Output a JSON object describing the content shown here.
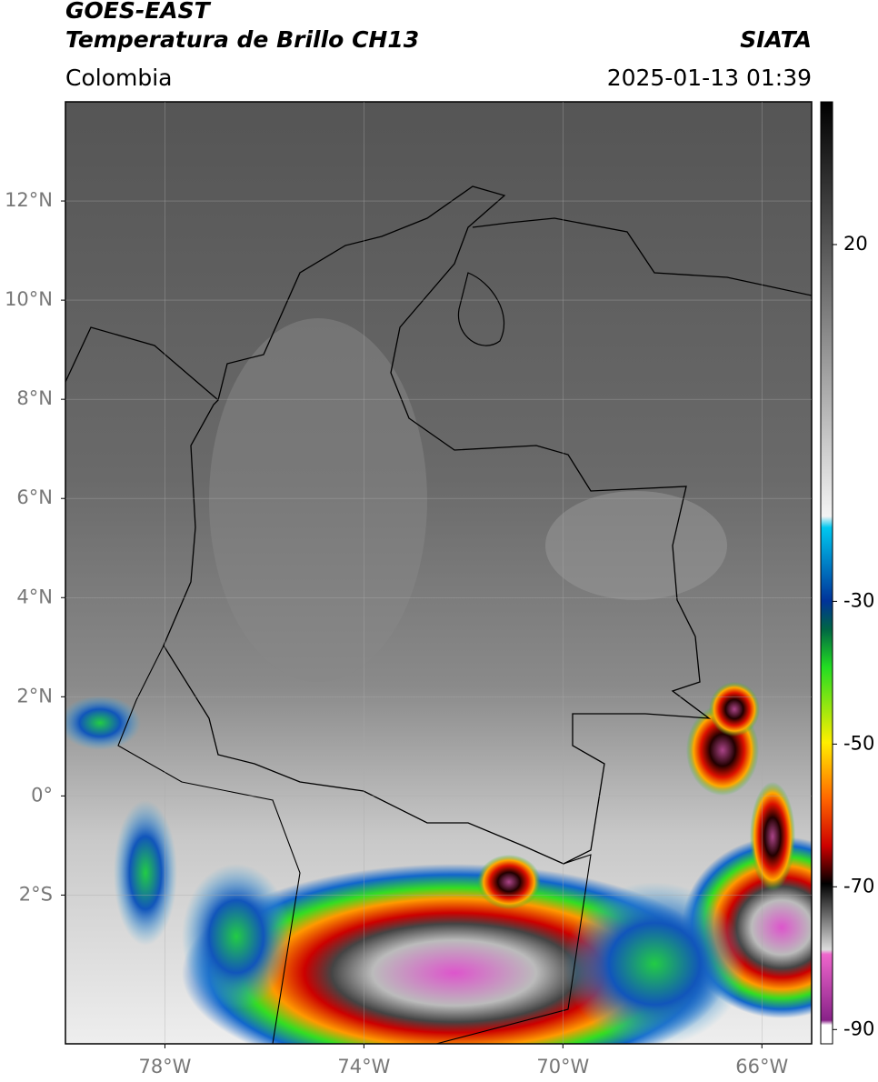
{
  "chart_data": {
    "type": "map",
    "title": "GOES-EAST",
    "subtitle": "Temperatura de Brillo CH13",
    "source": "SIATA",
    "region": "Colombia",
    "timestamp": "2025-01-13 01:39",
    "xlim": [
      -80,
      -65
    ],
    "ylim": [
      -5,
      14
    ],
    "xticks": [
      {
        "value": -78,
        "label": "78°W"
      },
      {
        "value": -74,
        "label": "74°W"
      },
      {
        "value": -70,
        "label": "70°W"
      },
      {
        "value": -66,
        "label": "66°W"
      }
    ],
    "yticks": [
      {
        "value": -2,
        "label": "2°S"
      },
      {
        "value": 0,
        "label": "0°"
      },
      {
        "value": 2,
        "label": "2°N"
      },
      {
        "value": 4,
        "label": "4°N"
      },
      {
        "value": 6,
        "label": "6°N"
      },
      {
        "value": 8,
        "label": "8°N"
      },
      {
        "value": 10,
        "label": "10°N"
      },
      {
        "value": 12,
        "label": "12°N"
      }
    ],
    "grid": true,
    "colorbar": {
      "lim": [
        -92,
        40
      ],
      "ticks": [
        -90,
        -70,
        -50,
        -30,
        20
      ]
    }
  }
}
